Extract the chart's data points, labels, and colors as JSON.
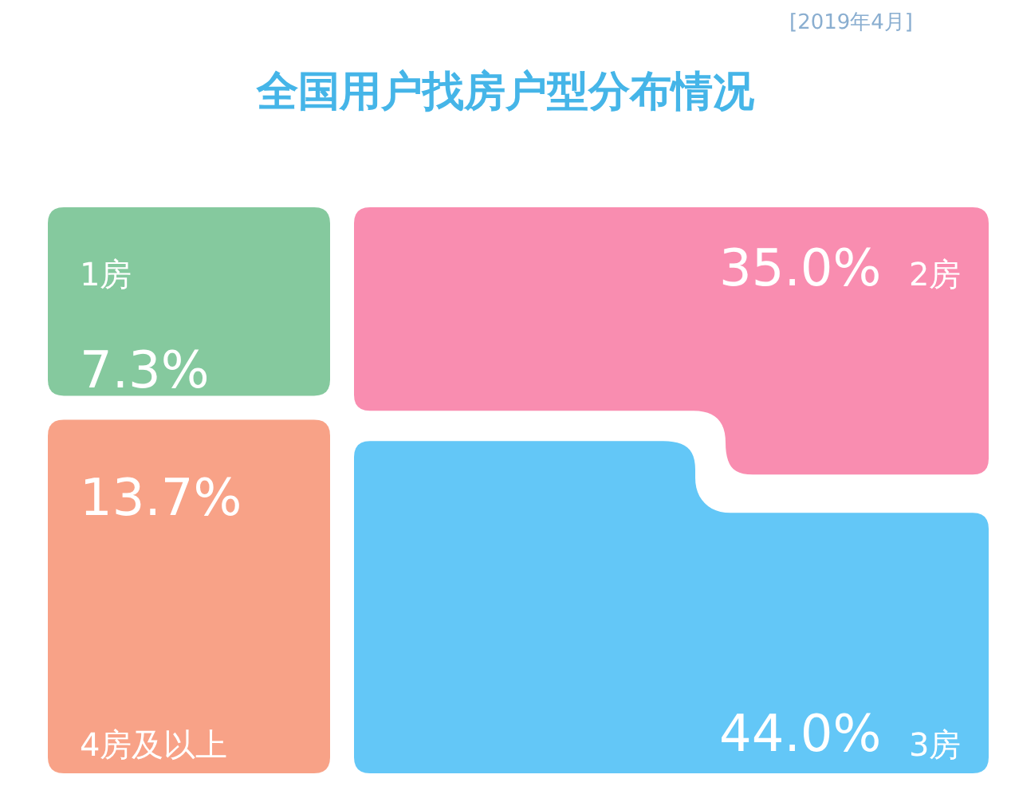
{
  "chart_data": {
    "type": "other",
    "title": "全国用户找房户型分布情况",
    "subtitle": "[2019年4月]",
    "categories": [
      "1房",
      "2房",
      "3房",
      "4房及以上"
    ],
    "values": [
      7.3,
      35.0,
      44.0,
      13.7
    ],
    "value_labels": [
      "7.3%",
      "35.0%",
      "44.0%",
      "13.7%"
    ],
    "colors": [
      "#85c99e",
      "#f98db0",
      "#63c7f7",
      "#f8a287"
    ]
  }
}
